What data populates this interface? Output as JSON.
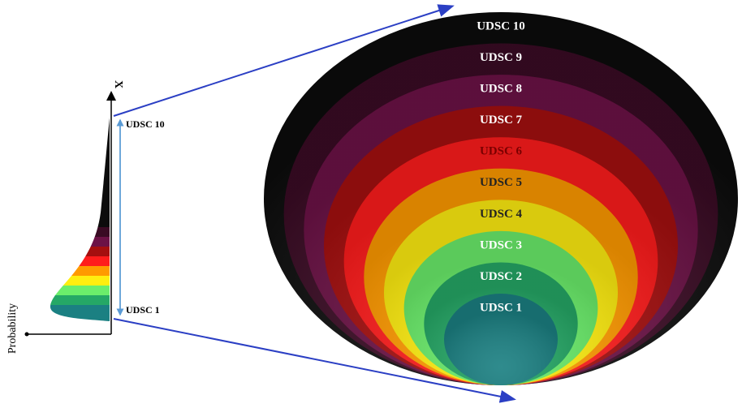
{
  "axis": {
    "y_label": "X",
    "x_label": "Probability"
  },
  "scale": {
    "top_label": "UDSC 10",
    "bottom_label": "UDSC 1"
  },
  "levels": [
    "UDSC 1",
    "UDSC 2",
    "UDSC 3",
    "UDSC 4",
    "UDSC 5",
    "UDSC 6",
    "UDSC 7",
    "UDSC 8",
    "UDSC 9",
    "UDSC 10"
  ]
}
